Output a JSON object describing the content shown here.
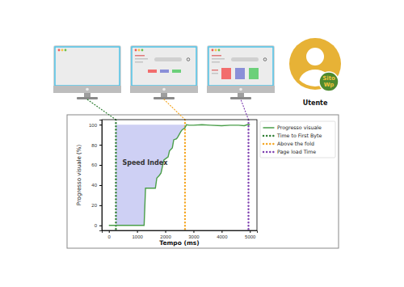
{
  "chart_data": {
    "type": "line",
    "x_label": "Tempo (ms)",
    "y_label": "Progresso visuale (%)",
    "x": [
      0,
      1250,
      1300,
      1650,
      1700,
      1800,
      1850,
      1950,
      2000,
      2100,
      2150,
      2250,
      2300,
      2400,
      2450,
      2550,
      2600,
      2700,
      2750,
      2850,
      3000,
      3300,
      3600,
      4000,
      4300,
      4600,
      4800,
      4900,
      5000
    ],
    "series": [
      {
        "name": "Progresso visuale",
        "color": "#4a9e4a",
        "line_style": "solid",
        "values": [
          0,
          0,
          37,
          37,
          47,
          50,
          52,
          65,
          66,
          68,
          74,
          77,
          85,
          86,
          88,
          93,
          95,
          97,
          100,
          99.5,
          99.5,
          100,
          99.5,
          99,
          99.5,
          99.5,
          99,
          100,
          100
        ]
      }
    ],
    "vertical_lines": [
      {
        "name": "Time to First Byte",
        "x": 250,
        "color": "#2e7d32",
        "line_style": "dotted"
      },
      {
        "name": "Above the fold",
        "x": 2700,
        "color": "#f5a623",
        "line_style": "dotted"
      },
      {
        "name": "Page load Time",
        "x": 4950,
        "color": "#7e3fb0",
        "line_style": "dotted"
      }
    ],
    "shaded_area": {
      "label": "Speed Index",
      "color": "#c5c8f2",
      "upper": 100
    },
    "xlim": [
      -250,
      5250
    ],
    "xticks": [
      0,
      1000,
      2000,
      3000,
      4000,
      5000
    ],
    "ylim": [
      -5,
      105
    ],
    "yticks": [
      0,
      20,
      40,
      60,
      80,
      100
    ],
    "grid": false,
    "legend": "right"
  },
  "illustration": {
    "user_label": "Utente",
    "badge": [
      "Sito",
      "Wp"
    ]
  }
}
